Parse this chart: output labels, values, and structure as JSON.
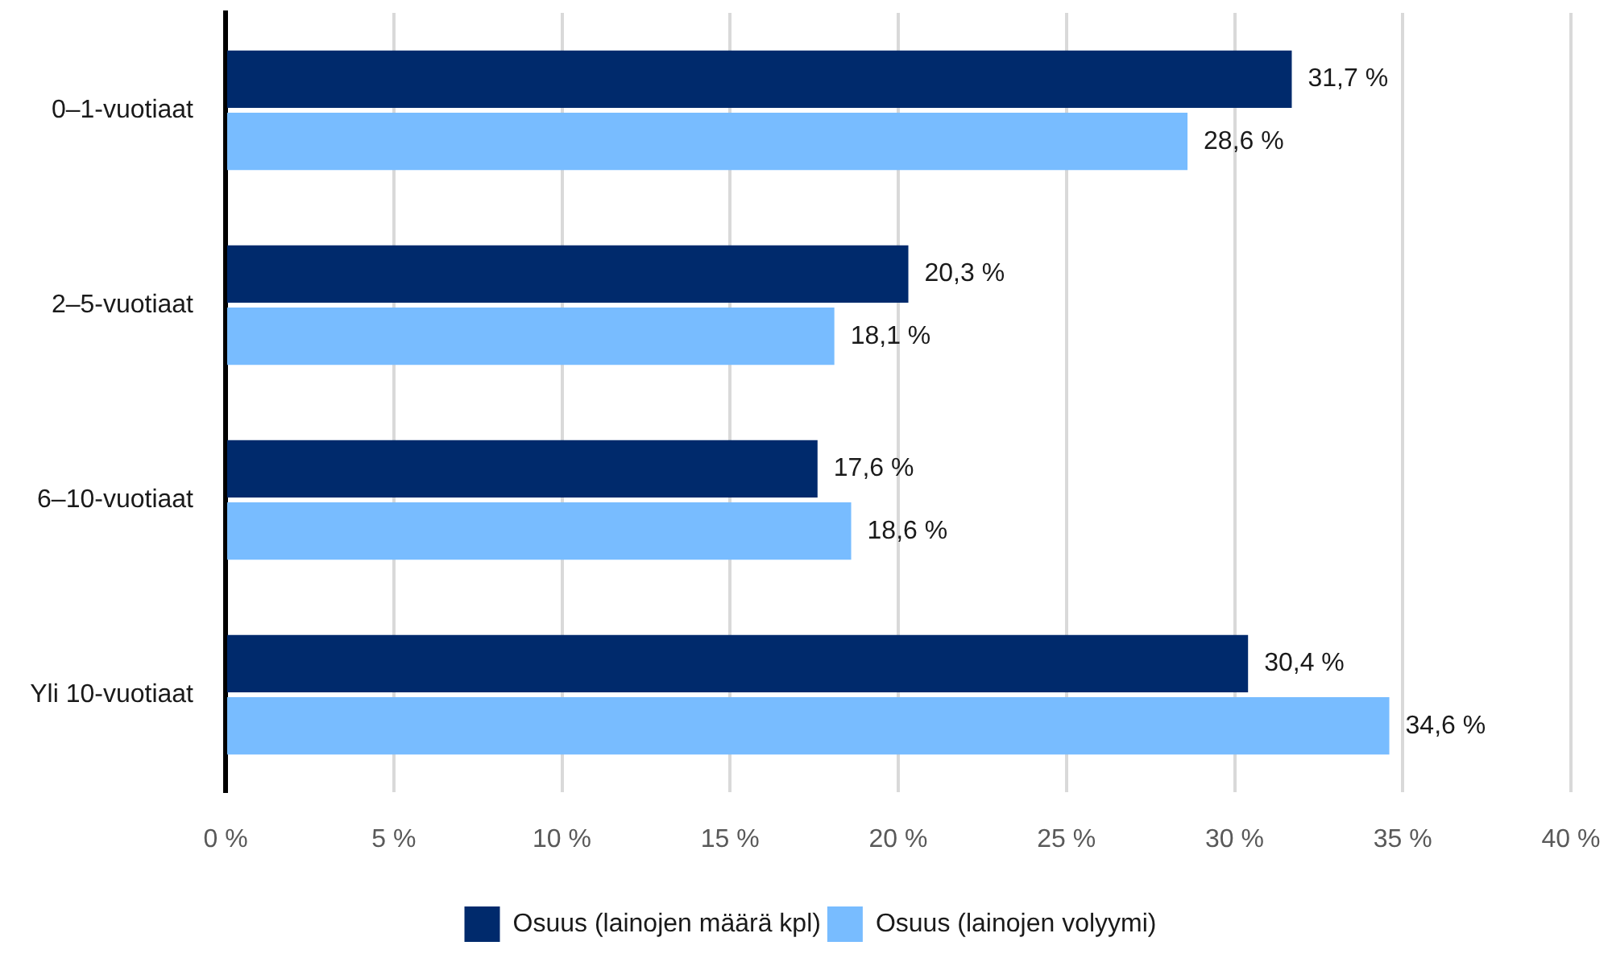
{
  "chart_data": {
    "type": "bar",
    "orientation": "horizontal",
    "categories": [
      "0–1-vuotiaat",
      "2–5-vuotiaat",
      "6–10-vuotiaat",
      "Yli 10-vuotiaat"
    ],
    "series": [
      {
        "name": "Osuus (lainojen määrä kpl)",
        "color": "#002a6c",
        "values": [
          31.7,
          20.3,
          17.6,
          30.4
        ],
        "value_labels": [
          "31,7 %",
          "20,3 %",
          "17,6 %",
          "30,4 %"
        ]
      },
      {
        "name": "Osuus (lainojen volyymi)",
        "color": "#78bcff",
        "values": [
          28.6,
          18.1,
          18.6,
          34.6
        ],
        "value_labels": [
          "28,6 %",
          "18,1 %",
          "18,6 %",
          "34,6 %"
        ]
      }
    ],
    "xlim": [
      0,
      40
    ],
    "xticks": [
      {
        "value": 0,
        "label": "0 %"
      },
      {
        "value": 5,
        "label": "5 %"
      },
      {
        "value": 10,
        "label": "10 %"
      },
      {
        "value": 15,
        "label": "15 %"
      },
      {
        "value": 20,
        "label": "20 %"
      },
      {
        "value": 25,
        "label": "25 %"
      },
      {
        "value": 30,
        "label": "30 %"
      },
      {
        "value": 35,
        "label": "35 %"
      },
      {
        "value": 40,
        "label": "40 %"
      }
    ],
    "grid": "x",
    "legend": "bottom"
  }
}
